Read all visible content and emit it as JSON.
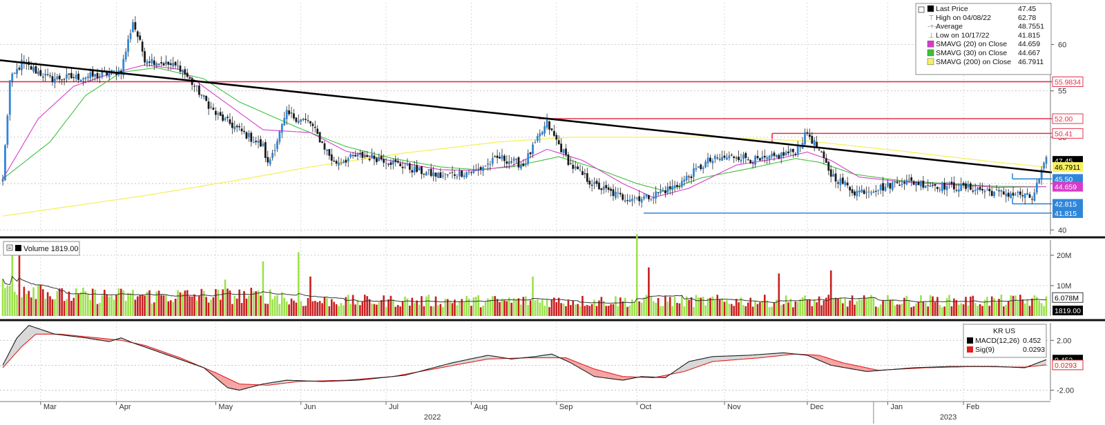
{
  "chart_data": [
    {
      "type": "candlestick",
      "panel": "price",
      "ylim": [
        39.5,
        64.5
      ],
      "yticks": [
        "40",
        "45",
        "50",
        "55",
        "60"
      ],
      "legend": [
        {
          "label": "Last Price",
          "value": "47.45",
          "color": "#000000",
          "marker": "square"
        },
        {
          "label": "High on 04/08/22",
          "value": "62.78",
          "color": "#9a9a9a",
          "marker": "high"
        },
        {
          "label": "Average",
          "value": "48.7551",
          "color": "#9a9a9a",
          "marker": "avg"
        },
        {
          "label": "Low on 10/17/22",
          "value": "41.815",
          "color": "#9a9a9a",
          "marker": "low"
        },
        {
          "label": "SMAVG (20)  on Close",
          "value": "44.659",
          "color": "#d63cc8",
          "marker": "square"
        },
        {
          "label": "SMAVG (30)  on Close",
          "value": "44.667",
          "color": "#3dbf3d",
          "marker": "square"
        },
        {
          "label": "SMAVG (200)  on Close",
          "value": "46.7911",
          "color": "#f5f060",
          "marker": "square"
        }
      ],
      "horizontal_levels": [
        {
          "value": 55.9834,
          "label": "55.9834",
          "color": "#e0304a"
        },
        {
          "value": 52.0,
          "label": "52.00",
          "color": "#e0304a"
        },
        {
          "value": 50.41,
          "label": "50.41",
          "color": "#e0304a"
        },
        {
          "value": 45.5,
          "label": "45.50",
          "color": "#2f86d9"
        },
        {
          "value": 42.815,
          "label": "42.815",
          "color": "#2f86d9"
        },
        {
          "value": 41.815,
          "label": "41.815",
          "color": "#2f86d9"
        }
      ],
      "axis_tags": [
        {
          "value": 47.45,
          "label": "47.45",
          "bg": "#000000",
          "fg": "#ffffff"
        },
        {
          "value": 46.7911,
          "label": "46.7911",
          "bg": "#f5f060",
          "fg": "#000000"
        },
        {
          "value": 44.659,
          "label": "44.659",
          "bg": "#d63cc8",
          "fg": "#ffffff"
        }
      ],
      "trendline": {
        "start": 58.3,
        "end": 46.2,
        "color": "#000000"
      },
      "series": {
        "close_anchors": [
          [
            0,
            45.5
          ],
          [
            3,
            56.0
          ],
          [
            8,
            58.0
          ],
          [
            20,
            56.3
          ],
          [
            40,
            56.6
          ],
          [
            50,
            57.2
          ],
          [
            55,
            62.5
          ],
          [
            60,
            58.5
          ],
          [
            75,
            57.5
          ],
          [
            90,
            52.5
          ],
          [
            110,
            49.0
          ],
          [
            112,
            47.0
          ],
          [
            120,
            52.5
          ],
          [
            130,
            51.5
          ],
          [
            140,
            47.2
          ],
          [
            150,
            48.0
          ],
          [
            160,
            47.7
          ],
          [
            175,
            46.4
          ],
          [
            185,
            45.8
          ],
          [
            200,
            46.4
          ],
          [
            210,
            47.8
          ],
          [
            220,
            47.0
          ],
          [
            230,
            51.5
          ],
          [
            232,
            50.5
          ],
          [
            240,
            47.0
          ],
          [
            250,
            44.8
          ],
          [
            262,
            43.5
          ],
          [
            272,
            43.5
          ],
          [
            285,
            44.8
          ],
          [
            298,
            47.4
          ],
          [
            310,
            48.0
          ],
          [
            320,
            47.4
          ],
          [
            335,
            48.5
          ],
          [
            340,
            50.5
          ],
          [
            345,
            48.5
          ],
          [
            350,
            46.0
          ],
          [
            360,
            44.1
          ],
          [
            372,
            44.6
          ],
          [
            380,
            45.3
          ],
          [
            395,
            44.8
          ],
          [
            410,
            44.5
          ],
          [
            420,
            44.0
          ],
          [
            430,
            43.8
          ],
          [
            435,
            43.4
          ],
          [
            438,
            45.5
          ],
          [
            441,
            47.45
          ]
        ],
        "sma20_anchors": [
          [
            0,
            45.5
          ],
          [
            15,
            52.0
          ],
          [
            30,
            55.5
          ],
          [
            45,
            56.8
          ],
          [
            60,
            57.8
          ],
          [
            75,
            57.3
          ],
          [
            90,
            54.5
          ],
          [
            110,
            50.8
          ],
          [
            130,
            50.5
          ],
          [
            145,
            48.5
          ],
          [
            165,
            47.4
          ],
          [
            185,
            46.5
          ],
          [
            200,
            46.4
          ],
          [
            215,
            46.9
          ],
          [
            230,
            48.7
          ],
          [
            245,
            47.5
          ],
          [
            262,
            45.0
          ],
          [
            275,
            43.5
          ],
          [
            290,
            44.5
          ],
          [
            310,
            47.0
          ],
          [
            330,
            47.8
          ],
          [
            340,
            48.4
          ],
          [
            350,
            47.5
          ],
          [
            362,
            45.7
          ],
          [
            380,
            45.2
          ],
          [
            400,
            44.9
          ],
          [
            420,
            44.6
          ],
          [
            441,
            44.659
          ]
        ],
        "sma30_anchors": [
          [
            0,
            45.5
          ],
          [
            20,
            49.5
          ],
          [
            35,
            54.5
          ],
          [
            50,
            57.0
          ],
          [
            65,
            57.5
          ],
          [
            85,
            56.3
          ],
          [
            100,
            53.8
          ],
          [
            125,
            51.0
          ],
          [
            145,
            49.0
          ],
          [
            165,
            47.7
          ],
          [
            185,
            46.8
          ],
          [
            200,
            46.5
          ],
          [
            215,
            46.8
          ],
          [
            235,
            47.9
          ],
          [
            250,
            46.7
          ],
          [
            268,
            45.0
          ],
          [
            280,
            44.2
          ],
          [
            295,
            45.6
          ],
          [
            315,
            46.6
          ],
          [
            335,
            47.7
          ],
          [
            345,
            47.3
          ],
          [
            360,
            46.0
          ],
          [
            380,
            45.3
          ],
          [
            400,
            45.0
          ],
          [
            420,
            44.7
          ],
          [
            441,
            44.667
          ]
        ],
        "sma200_anchors": [
          [
            0,
            41.5
          ],
          [
            60,
            43.7
          ],
          [
            100,
            45.4
          ],
          [
            130,
            46.8
          ],
          [
            170,
            48.3
          ],
          [
            210,
            49.5
          ],
          [
            240,
            50.0
          ],
          [
            300,
            50.0
          ],
          [
            340,
            49.6
          ],
          [
            380,
            48.5
          ],
          [
            420,
            47.3
          ],
          [
            441,
            46.7911
          ]
        ]
      }
    },
    {
      "type": "bar",
      "panel": "volume",
      "legend": "Volume 1819.00",
      "ylim": [
        0,
        25
      ],
      "yticks": [
        "10M",
        "20M"
      ],
      "axis_tags": [
        {
          "value": 6.078,
          "label": "6.078M",
          "bg": "#ffffff",
          "fg": "#000000"
        },
        {
          "value": 1.819,
          "label": "1819.00",
          "bg": "#000000",
          "fg": "#ffffff"
        }
      ],
      "spikes": [
        [
          4,
          24
        ],
        [
          7,
          21
        ],
        [
          125,
          21
        ],
        [
          94,
          12
        ],
        [
          110,
          18
        ],
        [
          130,
          13
        ],
        [
          224,
          13
        ],
        [
          268,
          27
        ],
        [
          273,
          16
        ],
        [
          328,
          14
        ],
        [
          350,
          15
        ],
        [
          430,
          7
        ]
      ]
    },
    {
      "type": "line",
      "panel": "macd",
      "title": "KR US",
      "ylim": [
        -2.8,
        3.4
      ],
      "yticks": [
        "2.00",
        "-2.00"
      ],
      "legend": [
        {
          "label": "MACD(12,26)",
          "value": "0.452",
          "color": "#000000"
        },
        {
          "label": "Sig(9)",
          "value": "0.0293",
          "color": "#e02020"
        }
      ],
      "axis_tags": [
        {
          "value": 0.452,
          "label": "0.452",
          "bg": "#000000",
          "fg": "#ffffff"
        },
        {
          "value": 0.0293,
          "label": "0.0293",
          "bg": "#ffffff",
          "fg": "#e02020"
        }
      ],
      "macd_anchors": [
        [
          0,
          0
        ],
        [
          6,
          2.2
        ],
        [
          11,
          3.2
        ],
        [
          22,
          2.5
        ],
        [
          35,
          2.2
        ],
        [
          45,
          1.9
        ],
        [
          50,
          2.2
        ],
        [
          55,
          1.8
        ],
        [
          70,
          0.8
        ],
        [
          85,
          -0.2
        ],
        [
          95,
          -1.8
        ],
        [
          100,
          -2.0
        ],
        [
          110,
          -1.5
        ],
        [
          120,
          -1.2
        ],
        [
          135,
          -1.3
        ],
        [
          150,
          -1.2
        ],
        [
          170,
          -0.8
        ],
        [
          190,
          0.2
        ],
        [
          205,
          0.8
        ],
        [
          215,
          0.5
        ],
        [
          225,
          0.7
        ],
        [
          232,
          0.9
        ],
        [
          240,
          0.2
        ],
        [
          250,
          -0.9
        ],
        [
          262,
          -1.2
        ],
        [
          270,
          -0.9
        ],
        [
          280,
          -1.0
        ],
        [
          290,
          0.3
        ],
        [
          300,
          0.7
        ],
        [
          315,
          0.8
        ],
        [
          330,
          1.0
        ],
        [
          340,
          0.8
        ],
        [
          350,
          0.0
        ],
        [
          365,
          -0.5
        ],
        [
          385,
          -0.2
        ],
        [
          400,
          -0.1
        ],
        [
          420,
          -0.1
        ],
        [
          432,
          -0.2
        ],
        [
          441,
          0.452
        ]
      ],
      "signal_anchors": [
        [
          0,
          -0.2
        ],
        [
          8,
          1.5
        ],
        [
          14,
          2.5
        ],
        [
          24,
          2.5
        ],
        [
          40,
          2.2
        ],
        [
          50,
          2.0
        ],
        [
          60,
          1.6
        ],
        [
          75,
          0.6
        ],
        [
          90,
          -0.6
        ],
        [
          100,
          -1.5
        ],
        [
          112,
          -1.6
        ],
        [
          125,
          -1.3
        ],
        [
          145,
          -1.2
        ],
        [
          165,
          -0.9
        ],
        [
          185,
          -0.2
        ],
        [
          205,
          0.5
        ],
        [
          222,
          0.6
        ],
        [
          238,
          0.6
        ],
        [
          250,
          -0.3
        ],
        [
          262,
          -0.9
        ],
        [
          275,
          -1.0
        ],
        [
          288,
          -0.5
        ],
        [
          300,
          0.3
        ],
        [
          320,
          0.6
        ],
        [
          335,
          0.9
        ],
        [
          345,
          0.8
        ],
        [
          355,
          0.2
        ],
        [
          370,
          -0.4
        ],
        [
          390,
          -0.2
        ],
        [
          410,
          -0.1
        ],
        [
          432,
          -0.15
        ],
        [
          441,
          0.0293
        ]
      ]
    }
  ],
  "x_axis": {
    "months": [
      {
        "label": "Mar",
        "idx": 16
      },
      {
        "label": "Apr",
        "idx": 48
      },
      {
        "label": "May",
        "idx": 90
      },
      {
        "label": "Jun",
        "idx": 126
      },
      {
        "label": "Jul",
        "idx": 162
      },
      {
        "label": "Aug",
        "idx": 198
      },
      {
        "label": "Sep",
        "idx": 234
      },
      {
        "label": "Oct",
        "idx": 268
      },
      {
        "label": "Nov",
        "idx": 305
      },
      {
        "label": "Dec",
        "idx": 340
      },
      {
        "label": "Jan",
        "idx": 374
      },
      {
        "label": "Feb",
        "idx": 406
      }
    ],
    "years": [
      {
        "label": "2022",
        "idx": 178
      },
      {
        "label": "2023",
        "idx": 396
      }
    ]
  },
  "colors": {
    "up": "#2f86d9",
    "down": "#1a1a1a",
    "vol_up": "#9be24a",
    "vol_down": "#c81e1e",
    "macd_fill_pos": "#d8d8d8",
    "macd_fill_neg": "#f5a3a3"
  }
}
